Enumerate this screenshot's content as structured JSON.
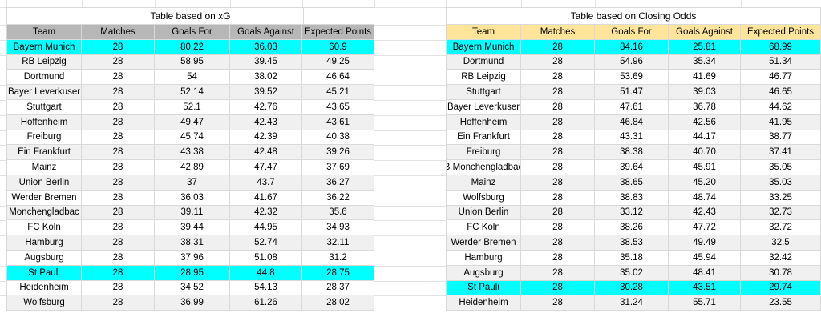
{
  "colors": {
    "xg_header_bg": "#b7b7b7",
    "odds_header_bg": "#ffe599",
    "highlight": "#00ffff",
    "band": "#f0f0f0",
    "row_bg": "#ffffff",
    "gridline": "#d9d9d9",
    "text": "#000000"
  },
  "tables": [
    {
      "id": "xg",
      "title": "Table based on xG",
      "header_bg": "#b7b7b7",
      "columns": [
        "Team",
        "Matches",
        "Goals For",
        "Goals Against",
        "Expected Points"
      ],
      "rows": [
        {
          "cells": [
            "Bayern Munich",
            "28",
            "80.22",
            "36.03",
            "60.9"
          ],
          "highlight": true
        },
        {
          "cells": [
            "RB Leipzig",
            "28",
            "58.95",
            "39.45",
            "49.25"
          ],
          "highlight": false
        },
        {
          "cells": [
            "Dortmund",
            "28",
            "54",
            "38.02",
            "46.64"
          ],
          "highlight": false
        },
        {
          "cells": [
            "Bayer Leverkuser",
            "28",
            "52.14",
            "39.52",
            "45.21"
          ],
          "highlight": false
        },
        {
          "cells": [
            "Stuttgart",
            "28",
            "52.1",
            "42.76",
            "43.65"
          ],
          "highlight": false
        },
        {
          "cells": [
            "Hoffenheim",
            "28",
            "49.47",
            "42.43",
            "43.61"
          ],
          "highlight": false
        },
        {
          "cells": [
            "Freiburg",
            "28",
            "45.74",
            "42.39",
            "40.38"
          ],
          "highlight": false
        },
        {
          "cells": [
            "Ein Frankfurt",
            "28",
            "43.38",
            "42.48",
            "39.26"
          ],
          "highlight": false
        },
        {
          "cells": [
            "Mainz",
            "28",
            "42.89",
            "47.47",
            "37.69"
          ],
          "highlight": false
        },
        {
          "cells": [
            "Union Berlin",
            "28",
            "37",
            "43.7",
            "36.27"
          ],
          "highlight": false
        },
        {
          "cells": [
            "Werder Bremen",
            "28",
            "36.03",
            "41.67",
            "36.22"
          ],
          "highlight": false
        },
        {
          "cells": [
            "Monchengladbac",
            "28",
            "39.11",
            "42.32",
            "35.6"
          ],
          "highlight": false
        },
        {
          "cells": [
            "FC Koln",
            "28",
            "39.44",
            "44.95",
            "34.93"
          ],
          "highlight": false
        },
        {
          "cells": [
            "Hamburg",
            "28",
            "38.31",
            "52.74",
            "32.11"
          ],
          "highlight": false
        },
        {
          "cells": [
            "Augsburg",
            "28",
            "37.96",
            "51.08",
            "31.2"
          ],
          "highlight": false
        },
        {
          "cells": [
            "St Pauli",
            "28",
            "28.95",
            "44.8",
            "28.75"
          ],
          "highlight": true
        },
        {
          "cells": [
            "Heidenheim",
            "28",
            "34.52",
            "54.13",
            "28.37"
          ],
          "highlight": false
        },
        {
          "cells": [
            "Wolfsburg",
            "28",
            "36.99",
            "61.26",
            "28.02"
          ],
          "highlight": false
        }
      ]
    },
    {
      "id": "closing-odds",
      "title": "Table based on Closing Odds",
      "header_bg": "#ffe599",
      "columns": [
        "Team",
        "Matches",
        "Goals For",
        "Goals Against",
        "Expected Points"
      ],
      "rows": [
        {
          "cells": [
            "Bayern Munich",
            "28",
            "84.16",
            "25.81",
            "68.99"
          ],
          "highlight": true
        },
        {
          "cells": [
            "Dortmund",
            "28",
            "54.96",
            "35.34",
            "51.34"
          ],
          "highlight": false
        },
        {
          "cells": [
            "RB Leipzig",
            "28",
            "53.69",
            "41.69",
            "46.77"
          ],
          "highlight": false
        },
        {
          "cells": [
            "Stuttgart",
            "28",
            "51.47",
            "39.03",
            "46.65"
          ],
          "highlight": false
        },
        {
          "cells": [
            "Bayer Leverkuser",
            "28",
            "47.61",
            "36.78",
            "44.62"
          ],
          "highlight": false
        },
        {
          "cells": [
            "Hoffenheim",
            "28",
            "46.84",
            "42.56",
            "41.95"
          ],
          "highlight": false
        },
        {
          "cells": [
            "Ein Frankfurt",
            "28",
            "43.31",
            "44.17",
            "38.77"
          ],
          "highlight": false
        },
        {
          "cells": [
            "Freiburg",
            "28",
            "38.38",
            "40.70",
            "37.41"
          ],
          "highlight": false
        },
        {
          "cells": [
            "B Monchengladbac",
            "28",
            "39.64",
            "45.91",
            "35.05"
          ],
          "highlight": false
        },
        {
          "cells": [
            "Mainz",
            "28",
            "38.65",
            "45.20",
            "35.03"
          ],
          "highlight": false
        },
        {
          "cells": [
            "Wolfsburg",
            "28",
            "38.83",
            "48.74",
            "33.25"
          ],
          "highlight": false
        },
        {
          "cells": [
            "Union Berlin",
            "28",
            "33.12",
            "42.43",
            "32.73"
          ],
          "highlight": false
        },
        {
          "cells": [
            "FC Koln",
            "28",
            "38.26",
            "47.72",
            "32.72"
          ],
          "highlight": false
        },
        {
          "cells": [
            "Werder Bremen",
            "28",
            "38.53",
            "49.49",
            "32.5"
          ],
          "highlight": false
        },
        {
          "cells": [
            "Hamburg",
            "28",
            "35.18",
            "45.94",
            "32.42"
          ],
          "highlight": false
        },
        {
          "cells": [
            "Augsburg",
            "28",
            "35.02",
            "48.41",
            "30.78"
          ],
          "highlight": false
        },
        {
          "cells": [
            "St Pauli",
            "28",
            "30.28",
            "43.51",
            "29.74"
          ],
          "highlight": true
        },
        {
          "cells": [
            "Heidenheim",
            "28",
            "31.24",
            "55.71",
            "23.55"
          ],
          "highlight": false
        }
      ]
    }
  ]
}
